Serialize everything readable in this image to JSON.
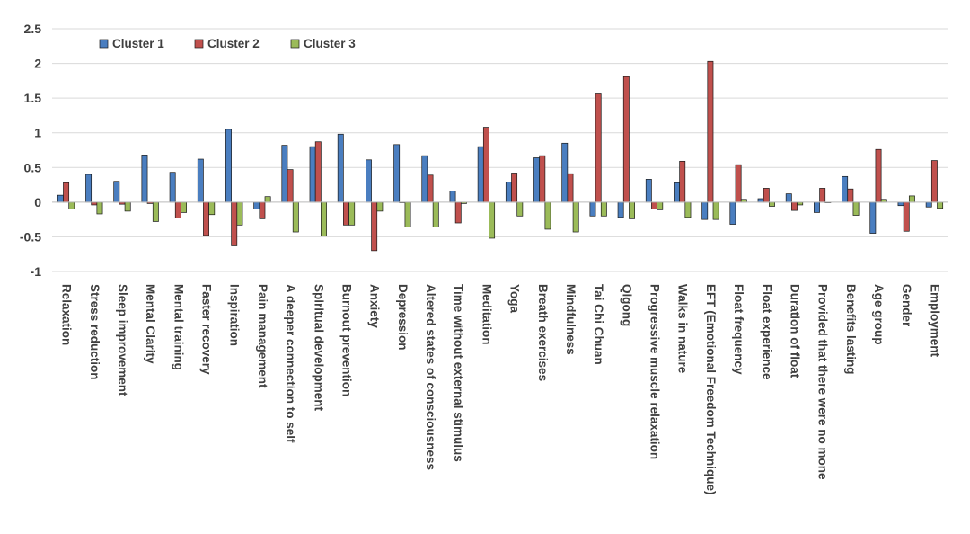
{
  "chart_data": {
    "type": "bar",
    "title": "",
    "xlabel": "",
    "ylabel": "",
    "ylim": [
      -1,
      2.5
    ],
    "yticks": [
      "2.5",
      "2",
      "1.5",
      "1",
      "0.5",
      "0",
      "-0.5",
      "-1"
    ],
    "ytick_values": [
      2.5,
      2,
      1.5,
      1,
      0.5,
      0,
      -0.5,
      -1
    ],
    "grid": true,
    "legend_position": "top-left",
    "categories": [
      "Relaxation",
      "Stress reduction",
      "Sleep improvement",
      "Mental Clarity",
      "Mental training",
      "Faster recovery",
      "Inspiration",
      "Pain management",
      "A deeper connection to self",
      "Spiritual development",
      "Burnout prevention",
      "Anxiety",
      "Depression",
      "Altered states of consciousness",
      "Time without external stimulus",
      "Meditation",
      "Yoga",
      "Breath exercises",
      "Mindfulness",
      "Tai Chi Chuan",
      "Qigong",
      "Progressive muscle relaxation",
      "Walks in nature",
      "EFT (Emotional Freedom Technique)",
      "Float frequency",
      "Float experience",
      "Duration of float",
      "Provided that there were no mone",
      "Benefits lasting",
      "Age group",
      "Gender",
      "Employment"
    ],
    "series": [
      {
        "name": "Cluster 1",
        "color": "#4a7ec0",
        "values": [
          0.1,
          0.4,
          0.3,
          0.68,
          0.43,
          0.62,
          1.05,
          -0.1,
          0.82,
          0.8,
          0.98,
          0.61,
          0.83,
          0.67,
          0.16,
          0.8,
          0.29,
          0.64,
          0.85,
          -0.2,
          -0.22,
          0.33,
          0.28,
          -0.25,
          -0.32,
          0.05,
          0.12,
          -0.15,
          0.37,
          -0.45,
          -0.05,
          -0.07
        ]
      },
      {
        "name": "Cluster 2",
        "color": "#c0504d",
        "values": [
          0.28,
          -0.04,
          -0.03,
          -0.02,
          -0.23,
          -0.48,
          -0.63,
          -0.24,
          0.47,
          0.87,
          -0.33,
          -0.7,
          0.0,
          0.39,
          -0.3,
          1.08,
          0.42,
          0.67,
          0.41,
          1.56,
          1.81,
          -0.1,
          0.59,
          2.03,
          0.54,
          0.2,
          -0.12,
          0.2,
          0.19,
          0.76,
          -0.42,
          0.6
        ]
      },
      {
        "name": "Cluster 3",
        "color": "#9bbb59",
        "values": [
          -0.1,
          -0.17,
          -0.13,
          -0.28,
          -0.15,
          -0.18,
          -0.33,
          0.08,
          -0.43,
          -0.49,
          -0.33,
          -0.13,
          -0.36,
          -0.36,
          -0.02,
          -0.52,
          -0.2,
          -0.39,
          -0.43,
          -0.2,
          -0.24,
          -0.11,
          -0.22,
          -0.25,
          0.04,
          -0.06,
          -0.04,
          0.0,
          -0.19,
          0.04,
          0.09,
          -0.09
        ]
      }
    ]
  }
}
